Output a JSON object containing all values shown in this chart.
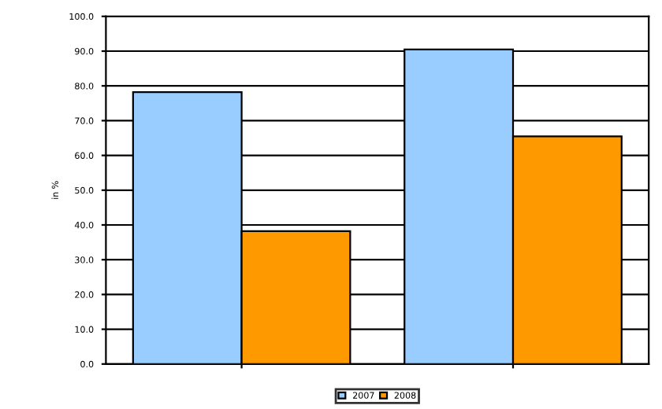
{
  "chart_data": {
    "type": "bar",
    "ylabel": "in %",
    "categories": [
      null,
      null
    ],
    "series": [
      {
        "name": "2007",
        "color": "#99ccff",
        "values": [
          78.2,
          90.5
        ]
      },
      {
        "name": "2008",
        "color": "#ff9900",
        "values": [
          38.2,
          65.5
        ]
      }
    ],
    "ylim": [
      0,
      100
    ],
    "yticks": [
      {
        "value": 0,
        "label": "0.0"
      },
      {
        "value": 10,
        "label": "10.0"
      },
      {
        "value": 20,
        "label": "20.0"
      },
      {
        "value": 30,
        "label": "30.0"
      },
      {
        "value": 40,
        "label": "40.0"
      },
      {
        "value": 50,
        "label": "50.0"
      },
      {
        "value": 60,
        "label": "60.0"
      },
      {
        "value": 70,
        "label": "70.0"
      },
      {
        "value": 80,
        "label": "80.0"
      },
      {
        "value": 90,
        "label": "90.0"
      },
      {
        "value": 100,
        "label": "100.0"
      }
    ],
    "grid": "y",
    "legend": "bottom"
  }
}
